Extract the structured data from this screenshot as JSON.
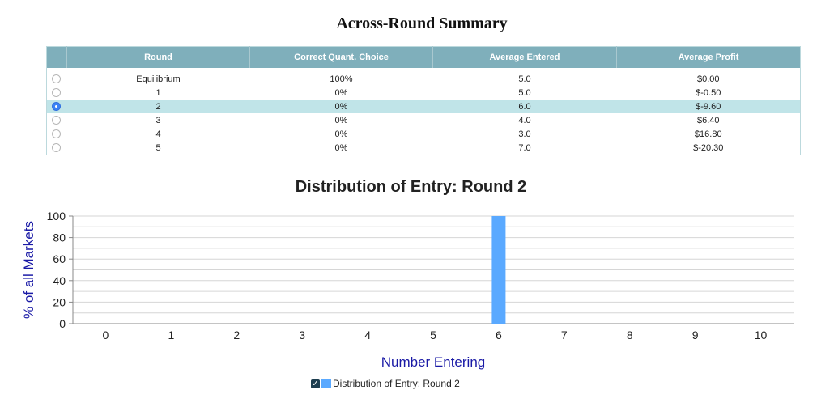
{
  "summary": {
    "title": "Across-Round Summary",
    "columns": [
      "Round",
      "Correct Quant. Choice",
      "Average Entered",
      "Average Profit"
    ],
    "rows": [
      {
        "round": "Equilibrium",
        "correct": "100%",
        "entered": "5.0",
        "profit": "$0.00",
        "selected": false
      },
      {
        "round": "1",
        "correct": "0%",
        "entered": "5.0",
        "profit": "$-0.50",
        "selected": false
      },
      {
        "round": "2",
        "correct": "0%",
        "entered": "6.0",
        "profit": "$-9.60",
        "selected": true
      },
      {
        "round": "3",
        "correct": "0%",
        "entered": "4.0",
        "profit": "$6.40",
        "selected": false
      },
      {
        "round": "4",
        "correct": "0%",
        "entered": "3.0",
        "profit": "$16.80",
        "selected": false
      },
      {
        "round": "5",
        "correct": "0%",
        "entered": "7.0",
        "profit": "$-20.30",
        "selected": false
      }
    ]
  },
  "legend": {
    "label": "Distribution of Entry: Round 2",
    "checked": true
  },
  "colors": {
    "header": "#7fafbb",
    "selected_row": "#c0e4e8",
    "bar": "#5aa9ff",
    "axis_label": "#1a1aa6"
  },
  "chart_data": {
    "type": "bar",
    "title": "Distribution of Entry: Round 2",
    "xlabel": "Number Entering",
    "ylabel": "% of all Markets",
    "categories": [
      "0",
      "1",
      "2",
      "3",
      "4",
      "5",
      "6",
      "7",
      "8",
      "9",
      "10"
    ],
    "series": [
      {
        "name": "Distribution of Entry: Round 2",
        "values": [
          0,
          0,
          0,
          0,
          0,
          0,
          100,
          0,
          0,
          0,
          0
        ]
      }
    ],
    "ylim": [
      0,
      100
    ],
    "yticks": [
      0,
      20,
      40,
      60,
      80,
      100
    ],
    "grid": true,
    "legend": "bottom"
  }
}
